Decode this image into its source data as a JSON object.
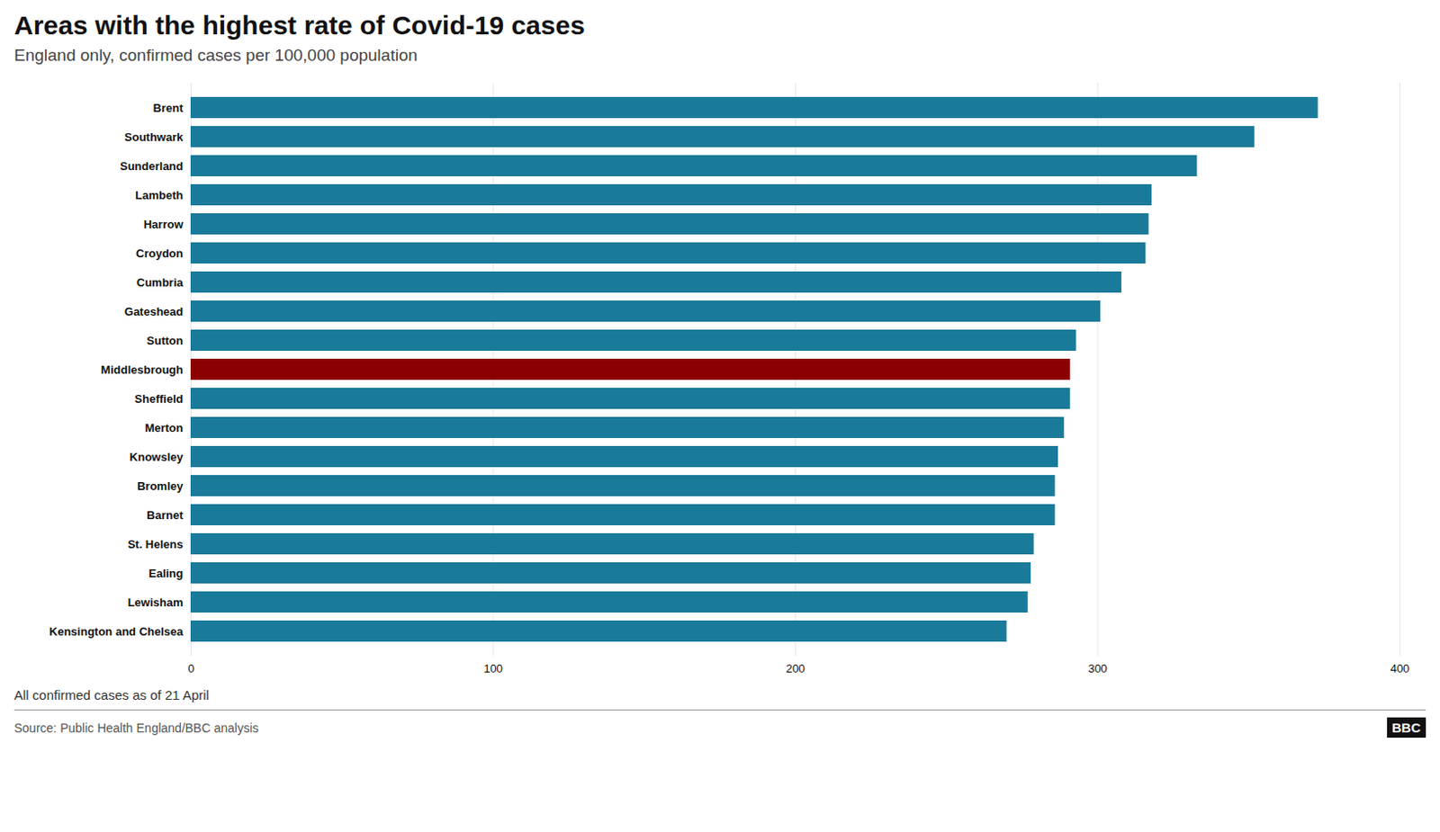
{
  "chart_data": {
    "type": "bar",
    "orientation": "horizontal",
    "title": "Areas with the highest rate of Covid-19 cases",
    "subtitle": "England only, confirmed cases per 100,000 population",
    "annotations": [
      "All confirmed cases as of 21 April",
      "Source: Public Health England/BBC analysis",
      "BBC"
    ],
    "categories": [
      "Brent",
      "Southwark",
      "Sunderland",
      "Lambeth",
      "Harrow",
      "Croydon",
      "Cumbria",
      "Gateshead",
      "Sutton",
      "Middlesbrough",
      "Sheffield",
      "Merton",
      "Knowsley",
      "Bromley",
      "Barnet",
      "St. Helens",
      "Ealing",
      "Lewisham",
      "Kensington and Chelsea"
    ],
    "values": [
      373,
      352,
      333,
      318,
      317,
      316,
      308,
      301,
      293,
      291,
      291,
      289,
      287,
      286,
      286,
      279,
      278,
      277,
      270
    ],
    "colors": [
      "#1a7a9a",
      "#1a7a9a",
      "#1a7a9a",
      "#1a7a9a",
      "#1a7a9a",
      "#1a7a9a",
      "#1a7a9a",
      "#1a7a9a",
      "#1a7a9a",
      "#8b0000",
      "#1a7a9a",
      "#1a7a9a",
      "#1a7a9a",
      "#1a7a9a",
      "#1a7a9a",
      "#1a7a9a",
      "#1a7a9a",
      "#1a7a9a",
      "#1a7a9a"
    ],
    "xlim": [
      0,
      400
    ],
    "xticks": [
      0,
      100,
      200,
      300,
      400
    ],
    "grid": true
  }
}
